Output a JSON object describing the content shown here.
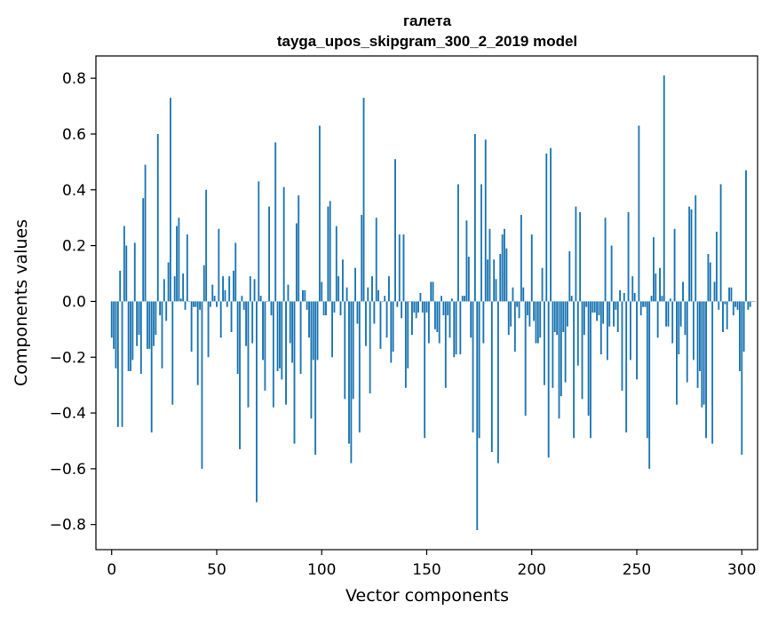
{
  "chart_data": {
    "type": "bar",
    "title": "галета",
    "subtitle": "tayga_upos_skipgram_300_2_2019 model",
    "xlabel": "Vector components",
    "ylabel": "Components values",
    "xlim": [
      -7.5,
      307.5
    ],
    "ylim": [
      -0.89,
      0.88
    ],
    "xticks": [
      0,
      50,
      100,
      150,
      200,
      250,
      300
    ],
    "xtick_labels": [
      "0",
      "50",
      "100",
      "150",
      "200",
      "250",
      "300"
    ],
    "yticks": [
      -0.8,
      -0.6,
      -0.4,
      -0.2,
      0.0,
      0.2,
      0.4,
      0.6,
      0.8
    ],
    "ytick_labels": [
      "−0.8",
      "−0.6",
      "−0.4",
      "−0.2",
      "0.0",
      "0.2",
      "0.4",
      "0.6",
      "0.8"
    ],
    "bar_color": "#1f77b4",
    "grid": false,
    "series": [
      {
        "values": [
          -0.13,
          -0.17,
          -0.24,
          -0.45,
          0.11,
          -0.45,
          0.27,
          0.2,
          -0.25,
          -0.25,
          -0.21,
          0.21,
          -0.16,
          -0.12,
          -0.26,
          0.37,
          0.49,
          -0.17,
          -0.17,
          -0.47,
          -0.16,
          -0.12,
          0.6,
          -0.05,
          -0.24,
          0.08,
          -0.07,
          0.14,
          0.73,
          -0.37,
          0.09,
          0.27,
          0.3,
          0.01,
          0.1,
          -0.03,
          0.24,
          0.0,
          -0.18,
          -0.02,
          -0.02,
          -0.3,
          -0.03,
          -0.6,
          0.13,
          0.4,
          -0.2,
          -0.02,
          0.06,
          0.02,
          -0.02,
          0.26,
          -0.13,
          0.09,
          0.04,
          -0.02,
          0.09,
          -0.11,
          0.11,
          0.21,
          -0.26,
          -0.53,
          0.02,
          -0.03,
          -0.16,
          -0.38,
          0.09,
          -0.15,
          0.08,
          -0.72,
          0.43,
          0.02,
          -0.21,
          -0.32,
          0.0,
          0.34,
          -0.05,
          -0.38,
          0.57,
          -0.25,
          -0.24,
          -0.28,
          0.41,
          -0.37,
          0.06,
          -0.15,
          -0.22,
          -0.51,
          0.28,
          0.38,
          -0.26,
          0.04,
          0.04,
          -0.03,
          -0.13,
          -0.42,
          -0.21,
          -0.55,
          -0.21,
          0.63,
          0.07,
          -0.05,
          -0.05,
          0.34,
          0.36,
          -0.2,
          -0.04,
          0.27,
          0.09,
          -0.05,
          0.15,
          -0.35,
          0.05,
          -0.51,
          -0.58,
          -0.35,
          0.12,
          -0.08,
          -0.47,
          0.31,
          0.73,
          -0.16,
          0.05,
          -0.33,
          0.09,
          -0.08,
          0.3,
          0.04,
          -0.17,
          0.0,
          0.02,
          -0.13,
          0.09,
          -0.22,
          -0.18,
          0.51,
          -0.02,
          0.24,
          -0.06,
          0.24,
          -0.31,
          -0.24,
          0.0,
          -0.12,
          -0.04,
          -0.06,
          -0.04,
          0.03,
          -0.04,
          -0.49,
          -0.04,
          -0.15,
          0.07,
          0.07,
          -0.1,
          -0.11,
          -0.15,
          0.02,
          -0.05,
          -0.31,
          -0.05,
          -0.13,
          0.01,
          -0.2,
          -0.19,
          0.42,
          -0.19,
          0.02,
          0.02,
          0.29,
          0.16,
          -0.13,
          -0.47,
          0.6,
          -0.82,
          -0.49,
          0.42,
          -0.15,
          0.58,
          0.15,
          0.26,
          -0.54,
          0.15,
          0.08,
          -0.58,
          0.17,
          0.24,
          0.26,
          0.19,
          -0.12,
          -0.09,
          0.05,
          -0.18,
          -0.02,
          -0.06,
          0.31,
          0.05,
          -0.41,
          -0.05,
          -0.09,
          0.24,
          -0.07,
          -0.15,
          -0.15,
          -0.13,
          0.12,
          -0.3,
          0.53,
          -0.56,
          0.55,
          -0.31,
          -0.11,
          -0.12,
          -0.42,
          -0.34,
          -0.11,
          -0.29,
          -0.09,
          0.18,
          0.02,
          -0.49,
          0.34,
          -0.23,
          0.32,
          -0.35,
          -0.12,
          -0.02,
          -0.41,
          -0.49,
          -0.04,
          -0.04,
          -0.07,
          -0.05,
          -0.19,
          -0.08,
          0.3,
          -0.21,
          -0.09,
          0.2,
          -0.09,
          -0.03,
          -0.11,
          0.04,
          -0.32,
          0.03,
          -0.47,
          0.32,
          -0.21,
          0.09,
          0.03,
          -0.28,
          0.63,
          -0.05,
          -0.02,
          -0.02,
          -0.49,
          -0.6,
          0.02,
          0.23,
          0.1,
          -0.13,
          0.12,
          0.02,
          0.81,
          -0.09,
          -0.09,
          0.01,
          -0.15,
          0.26,
          -0.37,
          -0.19,
          -0.09,
          0.07,
          -0.12,
          -0.29,
          0.34,
          0.33,
          -0.21,
          0.38,
          -0.31,
          -0.25,
          -0.38,
          -0.37,
          -0.49,
          0.17,
          0.14,
          -0.51,
          0.07,
          0.25,
          -0.03,
          0.42,
          -0.11,
          -0.01,
          -0.1,
          0.05,
          0.05,
          -0.05,
          -0.02,
          -0.03,
          -0.25,
          -0.55,
          -0.18,
          0.47,
          -0.03,
          -0.02,
          0.0,
          0.0
        ]
      }
    ]
  }
}
